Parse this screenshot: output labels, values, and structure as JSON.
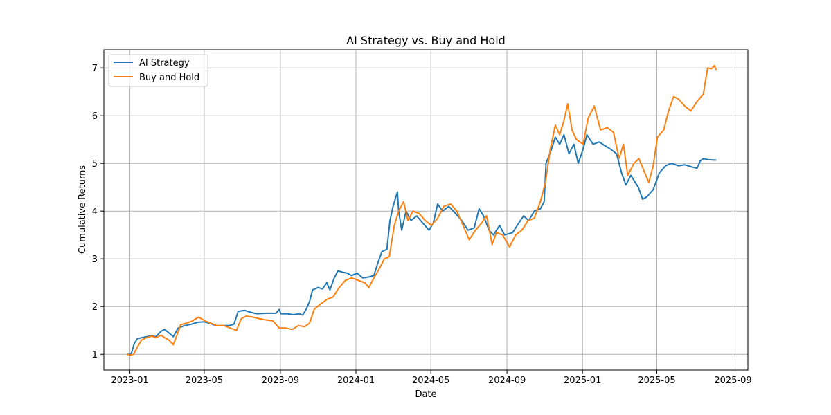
{
  "chart_data": {
    "type": "line",
    "title": "AI Strategy vs. Buy and Hold",
    "xlabel": "Date",
    "ylabel": "Cumulative Returns",
    "x_range": [
      "2022-11-20",
      "2025-09-25"
    ],
    "ylim": [
      0.67,
      7.38
    ],
    "x_ticks": [
      "2023-01",
      "2023-05",
      "2023-09",
      "2024-01",
      "2024-05",
      "2024-09",
      "2025-01",
      "2025-05",
      "2025-09"
    ],
    "x_tick_dates": [
      "2023-01-01",
      "2023-05-01",
      "2023-09-01",
      "2024-01-01",
      "2024-05-01",
      "2024-09-01",
      "2025-01-01",
      "2025-05-01",
      "2025-09-01"
    ],
    "y_ticks": [
      1,
      2,
      3,
      4,
      5,
      6,
      7
    ],
    "grid": true,
    "legend_position": "top-left",
    "series": [
      {
        "name": "AI Strategy",
        "color": "#1f77b4",
        "points": [
          [
            "2022-12-28",
            1.0
          ],
          [
            "2023-01-03",
            1.0
          ],
          [
            "2023-01-08",
            1.22
          ],
          [
            "2023-01-13",
            1.33
          ],
          [
            "2023-01-25",
            1.36
          ],
          [
            "2023-02-05",
            1.39
          ],
          [
            "2023-02-12",
            1.37
          ],
          [
            "2023-02-20",
            1.48
          ],
          [
            "2023-02-26",
            1.52
          ],
          [
            "2023-03-05",
            1.45
          ],
          [
            "2023-03-12",
            1.37
          ],
          [
            "2023-03-20",
            1.55
          ],
          [
            "2023-03-30",
            1.6
          ],
          [
            "2023-04-10",
            1.63
          ],
          [
            "2023-04-20",
            1.67
          ],
          [
            "2023-05-01",
            1.68
          ],
          [
            "2023-05-10",
            1.65
          ],
          [
            "2023-05-20",
            1.6
          ],
          [
            "2023-06-01",
            1.6
          ],
          [
            "2023-06-10",
            1.6
          ],
          [
            "2023-06-18",
            1.63
          ],
          [
            "2023-06-25",
            1.9
          ],
          [
            "2023-07-05",
            1.92
          ],
          [
            "2023-07-15",
            1.88
          ],
          [
            "2023-07-25",
            1.85
          ],
          [
            "2023-08-10",
            1.86
          ],
          [
            "2023-08-25",
            1.86
          ],
          [
            "2023-08-30",
            1.94
          ],
          [
            "2023-09-02",
            1.85
          ],
          [
            "2023-09-12",
            1.85
          ],
          [
            "2023-09-22",
            1.83
          ],
          [
            "2023-10-02",
            1.85
          ],
          [
            "2023-10-07",
            1.82
          ],
          [
            "2023-10-13",
            1.95
          ],
          [
            "2023-10-18",
            2.1
          ],
          [
            "2023-10-23",
            2.35
          ],
          [
            "2023-11-01",
            2.4
          ],
          [
            "2023-11-08",
            2.37
          ],
          [
            "2023-11-15",
            2.5
          ],
          [
            "2023-11-20",
            2.35
          ],
          [
            "2023-11-27",
            2.6
          ],
          [
            "2023-12-03",
            2.75
          ],
          [
            "2023-12-10",
            2.72
          ],
          [
            "2023-12-18",
            2.7
          ],
          [
            "2023-12-25",
            2.65
          ],
          [
            "2024-01-03",
            2.7
          ],
          [
            "2024-01-12",
            2.6
          ],
          [
            "2024-01-22",
            2.62
          ],
          [
            "2024-01-30",
            2.65
          ],
          [
            "2024-02-05",
            2.9
          ],
          [
            "2024-02-12",
            3.15
          ],
          [
            "2024-02-20",
            3.2
          ],
          [
            "2024-02-25",
            3.8
          ],
          [
            "2024-03-01",
            4.1
          ],
          [
            "2024-03-08",
            4.4
          ],
          [
            "2024-03-10",
            4.0
          ],
          [
            "2024-03-15",
            3.6
          ],
          [
            "2024-03-22",
            4.0
          ],
          [
            "2024-03-30",
            3.8
          ],
          [
            "2024-04-08",
            3.9
          ],
          [
            "2024-04-18",
            3.75
          ],
          [
            "2024-04-28",
            3.6
          ],
          [
            "2024-05-05",
            3.75
          ],
          [
            "2024-05-12",
            4.15
          ],
          [
            "2024-05-20",
            4.0
          ],
          [
            "2024-05-30",
            4.1
          ],
          [
            "2024-06-10",
            3.95
          ],
          [
            "2024-06-20",
            3.8
          ],
          [
            "2024-06-30",
            3.6
          ],
          [
            "2024-07-10",
            3.65
          ],
          [
            "2024-07-18",
            4.05
          ],
          [
            "2024-07-25",
            3.9
          ],
          [
            "2024-08-03",
            3.6
          ],
          [
            "2024-08-10",
            3.5
          ],
          [
            "2024-08-20",
            3.7
          ],
          [
            "2024-08-28",
            3.5
          ],
          [
            "2024-09-10",
            3.55
          ],
          [
            "2024-09-20",
            3.75
          ],
          [
            "2024-09-28",
            3.9
          ],
          [
            "2024-10-06",
            3.8
          ],
          [
            "2024-10-15",
            4.0
          ],
          [
            "2024-10-25",
            4.05
          ],
          [
            "2024-10-31",
            4.2
          ],
          [
            "2024-11-03",
            5.0
          ],
          [
            "2024-11-06",
            5.1
          ],
          [
            "2024-11-12",
            5.3
          ],
          [
            "2024-11-18",
            5.55
          ],
          [
            "2024-11-25",
            5.4
          ],
          [
            "2024-12-02",
            5.6
          ],
          [
            "2024-12-10",
            5.2
          ],
          [
            "2024-12-18",
            5.4
          ],
          [
            "2024-12-25",
            5.0
          ],
          [
            "2025-01-02",
            5.3
          ],
          [
            "2025-01-08",
            5.6
          ],
          [
            "2025-01-18",
            5.4
          ],
          [
            "2025-01-28",
            5.45
          ],
          [
            "2025-02-05",
            5.38
          ],
          [
            "2025-02-15",
            5.3
          ],
          [
            "2025-02-25",
            5.2
          ],
          [
            "2025-03-05",
            4.8
          ],
          [
            "2025-03-12",
            4.55
          ],
          [
            "2025-03-20",
            4.75
          ],
          [
            "2025-04-01",
            4.5
          ],
          [
            "2025-04-08",
            4.25
          ],
          [
            "2025-04-15",
            4.3
          ],
          [
            "2025-04-25",
            4.45
          ],
          [
            "2025-05-05",
            4.8
          ],
          [
            "2025-05-15",
            4.95
          ],
          [
            "2025-05-25",
            5.0
          ],
          [
            "2025-06-05",
            4.95
          ],
          [
            "2025-06-15",
            4.97
          ],
          [
            "2025-06-28",
            4.92
          ],
          [
            "2025-07-05",
            4.9
          ],
          [
            "2025-07-10",
            5.05
          ],
          [
            "2025-07-15",
            5.1
          ],
          [
            "2025-07-22",
            5.08
          ],
          [
            "2025-08-01",
            5.07
          ],
          [
            "2025-08-05",
            5.07
          ]
        ]
      },
      {
        "name": "Buy and Hold",
        "color": "#ff7f0e",
        "points": [
          [
            "2022-12-28",
            1.0
          ],
          [
            "2023-01-02",
            0.98
          ],
          [
            "2023-01-07",
            1.0
          ],
          [
            "2023-01-13",
            1.15
          ],
          [
            "2023-01-20",
            1.3
          ],
          [
            "2023-01-28",
            1.35
          ],
          [
            "2023-02-05",
            1.38
          ],
          [
            "2023-02-12",
            1.35
          ],
          [
            "2023-02-20",
            1.4
          ],
          [
            "2023-02-26",
            1.35
          ],
          [
            "2023-03-05",
            1.3
          ],
          [
            "2023-03-12",
            1.2
          ],
          [
            "2023-03-18",
            1.4
          ],
          [
            "2023-03-24",
            1.62
          ],
          [
            "2023-04-02",
            1.65
          ],
          [
            "2023-04-12",
            1.7
          ],
          [
            "2023-04-22",
            1.78
          ],
          [
            "2023-05-02",
            1.7
          ],
          [
            "2023-05-12",
            1.65
          ],
          [
            "2023-05-22",
            1.6
          ],
          [
            "2023-06-02",
            1.6
          ],
          [
            "2023-06-12",
            1.55
          ],
          [
            "2023-06-22",
            1.5
          ],
          [
            "2023-06-30",
            1.75
          ],
          [
            "2023-07-08",
            1.8
          ],
          [
            "2023-07-18",
            1.78
          ],
          [
            "2023-07-28",
            1.75
          ],
          [
            "2023-08-08",
            1.72
          ],
          [
            "2023-08-20",
            1.7
          ],
          [
            "2023-08-30",
            1.55
          ],
          [
            "2023-09-10",
            1.55
          ],
          [
            "2023-09-20",
            1.52
          ],
          [
            "2023-09-30",
            1.6
          ],
          [
            "2023-10-10",
            1.58
          ],
          [
            "2023-10-18",
            1.65
          ],
          [
            "2023-10-26",
            1.95
          ],
          [
            "2023-11-05",
            2.05
          ],
          [
            "2023-11-15",
            2.15
          ],
          [
            "2023-11-25",
            2.2
          ],
          [
            "2023-12-05",
            2.4
          ],
          [
            "2023-12-15",
            2.55
          ],
          [
            "2023-12-25",
            2.6
          ],
          [
            "2024-01-05",
            2.55
          ],
          [
            "2024-01-15",
            2.5
          ],
          [
            "2024-01-22",
            2.4
          ],
          [
            "2024-01-30",
            2.6
          ],
          [
            "2024-02-08",
            2.8
          ],
          [
            "2024-02-16",
            3.0
          ],
          [
            "2024-02-24",
            3.05
          ],
          [
            "2024-03-03",
            3.7
          ],
          [
            "2024-03-10",
            4.0
          ],
          [
            "2024-03-18",
            4.2
          ],
          [
            "2024-03-25",
            3.8
          ],
          [
            "2024-04-02",
            4.0
          ],
          [
            "2024-04-12",
            3.95
          ],
          [
            "2024-04-22",
            3.8
          ],
          [
            "2024-05-02",
            3.7
          ],
          [
            "2024-05-12",
            3.85
          ],
          [
            "2024-05-22",
            4.1
          ],
          [
            "2024-06-02",
            4.15
          ],
          [
            "2024-06-12",
            4.0
          ],
          [
            "2024-06-22",
            3.7
          ],
          [
            "2024-07-02",
            3.4
          ],
          [
            "2024-07-12",
            3.6
          ],
          [
            "2024-07-22",
            3.75
          ],
          [
            "2024-07-30",
            3.9
          ],
          [
            "2024-08-08",
            3.3
          ],
          [
            "2024-08-15",
            3.55
          ],
          [
            "2024-08-25",
            3.5
          ],
          [
            "2024-09-05",
            3.25
          ],
          [
            "2024-09-15",
            3.5
          ],
          [
            "2024-09-25",
            3.6
          ],
          [
            "2024-10-05",
            3.8
          ],
          [
            "2024-10-15",
            3.85
          ],
          [
            "2024-10-25",
            4.2
          ],
          [
            "2024-11-02",
            4.6
          ],
          [
            "2024-11-10",
            5.3
          ],
          [
            "2024-11-18",
            5.8
          ],
          [
            "2024-11-25",
            5.6
          ],
          [
            "2024-12-02",
            5.9
          ],
          [
            "2024-12-08",
            6.25
          ],
          [
            "2024-12-15",
            5.7
          ],
          [
            "2024-12-22",
            5.5
          ],
          [
            "2025-01-02",
            5.4
          ],
          [
            "2025-01-10",
            5.95
          ],
          [
            "2025-01-20",
            6.2
          ],
          [
            "2025-01-30",
            5.7
          ],
          [
            "2025-02-10",
            5.75
          ],
          [
            "2025-02-20",
            5.65
          ],
          [
            "2025-03-01",
            5.1
          ],
          [
            "2025-03-08",
            5.4
          ],
          [
            "2025-03-15",
            4.75
          ],
          [
            "2025-03-25",
            5.0
          ],
          [
            "2025-04-02",
            5.1
          ],
          [
            "2025-04-10",
            4.85
          ],
          [
            "2025-04-18",
            4.6
          ],
          [
            "2025-04-25",
            4.95
          ],
          [
            "2025-05-02",
            5.55
          ],
          [
            "2025-05-12",
            5.7
          ],
          [
            "2025-05-20",
            6.1
          ],
          [
            "2025-05-28",
            6.4
          ],
          [
            "2025-06-05",
            6.35
          ],
          [
            "2025-06-15",
            6.2
          ],
          [
            "2025-06-25",
            6.1
          ],
          [
            "2025-07-05",
            6.3
          ],
          [
            "2025-07-15",
            6.45
          ],
          [
            "2025-07-22",
            7.0
          ],
          [
            "2025-07-28",
            6.98
          ],
          [
            "2025-08-02",
            7.05
          ],
          [
            "2025-08-05",
            6.96
          ]
        ]
      }
    ]
  }
}
